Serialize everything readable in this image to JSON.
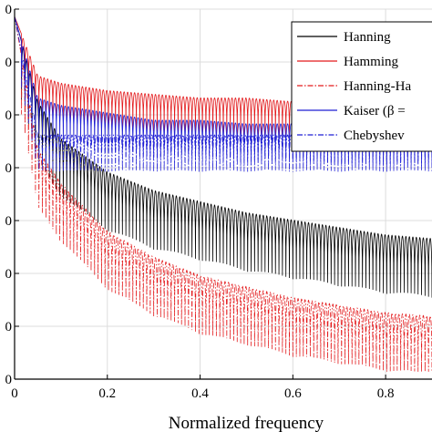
{
  "chart_data": {
    "type": "line",
    "xlabel": "Normalized frequency",
    "ylabel": "",
    "xlim": [
      0,
      0.9
    ],
    "x_ticks": [
      "0",
      "0.2",
      "0.4",
      "0.6",
      "0.8"
    ],
    "y_ticks": [
      "0",
      "0",
      "0",
      "0",
      "0",
      "0",
      "0",
      "0"
    ],
    "grid": true,
    "legend_position": "top-right",
    "series": [
      {
        "name": "Hanning",
        "color": "#000000",
        "dash": "solid",
        "x": [
          0.0,
          0.05,
          0.1,
          0.2,
          0.3,
          0.4,
          0.5,
          0.6,
          0.7,
          0.8,
          0.9
        ],
        "envelope_top": [
          0.98,
          0.75,
          0.65,
          0.56,
          0.51,
          0.48,
          0.45,
          0.43,
          0.41,
          0.39,
          0.38
        ]
      },
      {
        "name": "Hamming",
        "color": "#e31a1c",
        "dash": "solid",
        "x": [
          0.0,
          0.05,
          0.1,
          0.2,
          0.3,
          0.4,
          0.5,
          0.6,
          0.7,
          0.8,
          0.9
        ],
        "envelope_top": [
          0.98,
          0.82,
          0.8,
          0.78,
          0.77,
          0.76,
          0.76,
          0.75,
          0.75,
          0.75,
          0.74
        ]
      },
      {
        "name": "Hanning-Ha",
        "color": "#e31a1c",
        "dash": "dashdot",
        "x": [
          0.0,
          0.05,
          0.1,
          0.2,
          0.3,
          0.4,
          0.5,
          0.6,
          0.7,
          0.8,
          0.9
        ],
        "envelope_top": [
          0.98,
          0.62,
          0.53,
          0.4,
          0.33,
          0.28,
          0.25,
          0.22,
          0.2,
          0.18,
          0.17
        ]
      },
      {
        "name": "Kaiser (β = ",
        "color": "#1f1fd4",
        "dash": "solid",
        "x": [
          0.0,
          0.05,
          0.1,
          0.2,
          0.3,
          0.4,
          0.5,
          0.6,
          0.7,
          0.8,
          0.9
        ],
        "envelope_top": [
          0.98,
          0.76,
          0.74,
          0.72,
          0.7,
          0.7,
          0.69,
          0.69,
          0.68,
          0.68,
          0.68
        ]
      },
      {
        "name": "Chebyshev",
        "color": "#1f1fd4",
        "dash": "dashdot",
        "x": [
          0.0,
          0.05,
          0.1,
          0.2,
          0.3,
          0.4,
          0.5,
          0.6,
          0.7,
          0.8,
          0.9
        ],
        "envelope_top": [
          0.98,
          0.66,
          0.66,
          0.66,
          0.66,
          0.66,
          0.66,
          0.66,
          0.66,
          0.66,
          0.66
        ]
      }
    ]
  }
}
